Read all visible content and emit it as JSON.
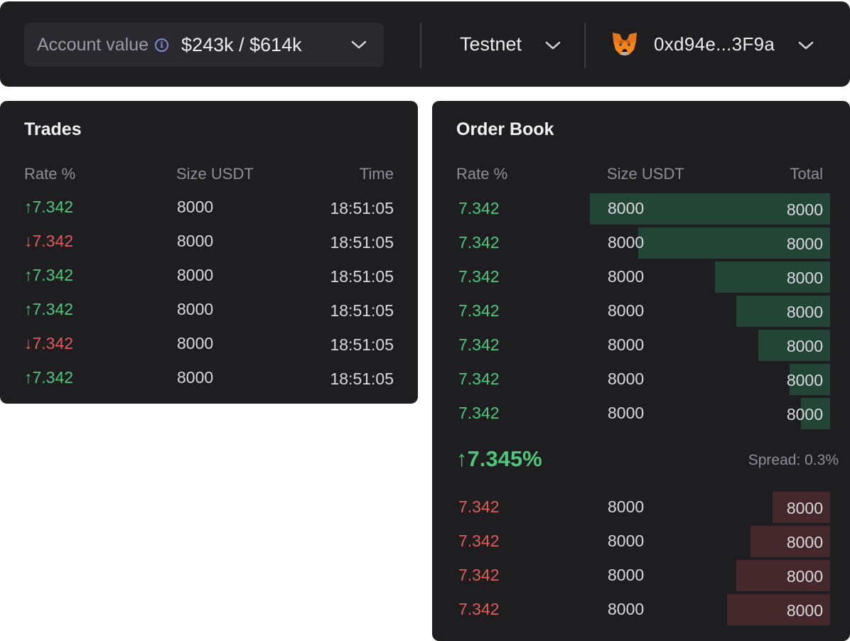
{
  "header": {
    "account_label": "Account value",
    "account_value": "$243k / $614k",
    "network": "Testnet",
    "wallet_address": "0xd94e...3F9a",
    "icons": {
      "info": "info-icon",
      "chevron": "chevron-down-icon",
      "wallet": "metamask-fox-icon"
    }
  },
  "trades": {
    "title": "Trades",
    "columns": [
      "Rate %",
      "Size USDT",
      "Time"
    ],
    "rows": [
      {
        "arrow": "↑",
        "rate": "7.342",
        "size": "8000",
        "time": "18:51:05",
        "side": "up"
      },
      {
        "arrow": "↓",
        "rate": "7.342",
        "size": "8000",
        "time": "18:51:05",
        "side": "down"
      },
      {
        "arrow": "↑",
        "rate": "7.342",
        "size": "8000",
        "time": "18:51:05",
        "side": "up"
      },
      {
        "arrow": "↑",
        "rate": "7.342",
        "size": "8000",
        "time": "18:51:05",
        "side": "up"
      },
      {
        "arrow": "↓",
        "rate": "7.342",
        "size": "8000",
        "time": "18:51:05",
        "side": "down"
      },
      {
        "arrow": "↑",
        "rate": "7.342",
        "size": "8000",
        "time": "18:51:05",
        "side": "up"
      }
    ]
  },
  "order_book": {
    "title": "Order Book",
    "columns": [
      "Rate %",
      "Size USDT",
      "Total"
    ],
    "bids": [
      {
        "rate": "7.342",
        "size": "8000",
        "total": "8000",
        "depth": 1.0
      },
      {
        "rate": "7.342",
        "size": "8000",
        "total": "8000",
        "depth": 0.8
      },
      {
        "rate": "7.342",
        "size": "8000",
        "total": "8000",
        "depth": 0.48
      },
      {
        "rate": "7.342",
        "size": "8000",
        "total": "8000",
        "depth": 0.39
      },
      {
        "rate": "7.342",
        "size": "8000",
        "total": "8000",
        "depth": 0.3
      },
      {
        "rate": "7.342",
        "size": "8000",
        "total": "8000",
        "depth": 0.17
      },
      {
        "rate": "7.342",
        "size": "8000",
        "total": "8000",
        "depth": 0.12
      }
    ],
    "mid_arrow": "↑",
    "mid_rate": "7.345%",
    "spread": "Spread: 0.3%",
    "asks": [
      {
        "rate": "7.342",
        "size": "8000",
        "total": "8000",
        "depth": 0.24
      },
      {
        "rate": "7.342",
        "size": "8000",
        "total": "8000",
        "depth": 0.33
      },
      {
        "rate": "7.342",
        "size": "8000",
        "total": "8000",
        "depth": 0.39
      },
      {
        "rate": "7.342",
        "size": "8000",
        "total": "8000",
        "depth": 0.43
      }
    ]
  },
  "colors": {
    "up": "#4fc77a",
    "down": "#e25b5b",
    "bid_bar": "#234536",
    "ask_bar": "#44282b"
  }
}
